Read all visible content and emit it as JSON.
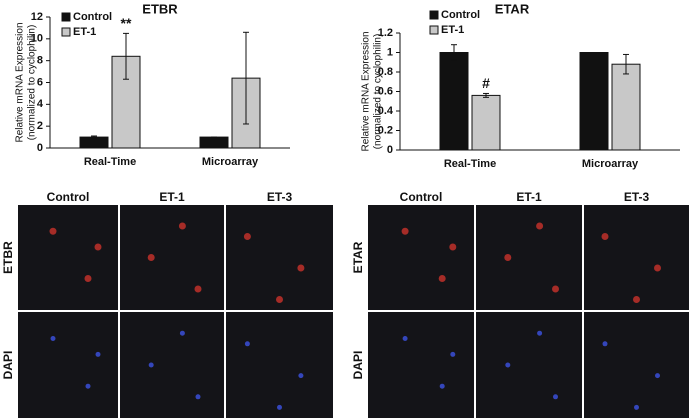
{
  "chart_data": [
    {
      "type": "bar",
      "title": "ETBR",
      "y_label": [
        "Relative mRNA Expression",
        "(normalized to cyclophilin)"
      ],
      "categories": [
        "Real-Time",
        "Microarray"
      ],
      "series": [
        {
          "name": "Control",
          "color": "#111111",
          "values": [
            1,
            1
          ],
          "errors": [
            0.1,
            0
          ]
        },
        {
          "name": "ET-1",
          "color": "#c8c8c8",
          "values": [
            8.4,
            6.4
          ],
          "errors": [
            2.1,
            4.2
          ]
        }
      ],
      "annotations": [
        "**"
      ],
      "ylim": [
        0,
        12
      ],
      "yticks": [
        0,
        2,
        4,
        6,
        8,
        10,
        12
      ],
      "grid": false
    },
    {
      "type": "bar",
      "title": "ETAR",
      "y_label": [
        "Relative mRNA Expression",
        "(normalized to cyclophilin)"
      ],
      "categories": [
        "Real-Time",
        "Microarray"
      ],
      "series": [
        {
          "name": "Control",
          "color": "#111111",
          "values": [
            1,
            1
          ],
          "errors": [
            0.08,
            0
          ]
        },
        {
          "name": "ET-1",
          "color": "#c8c8c8",
          "values": [
            0.56,
            0.88
          ],
          "errors": [
            0.02,
            0.1
          ]
        }
      ],
      "annotations": [
        "#"
      ],
      "ylim": [
        0,
        1.2
      ],
      "yticks": [
        0,
        0.2,
        0.4,
        0.6,
        0.8,
        1,
        1.2
      ],
      "grid": false
    }
  ],
  "image_panels": [
    {
      "columns": [
        "Control",
        "ET-1",
        "ET-3"
      ],
      "rows": [
        "ETBR",
        "DAPI"
      ]
    },
    {
      "columns": [
        "Control",
        "ET-1",
        "ET-3"
      ],
      "rows": [
        "ETAR",
        "DAPI"
      ]
    }
  ]
}
